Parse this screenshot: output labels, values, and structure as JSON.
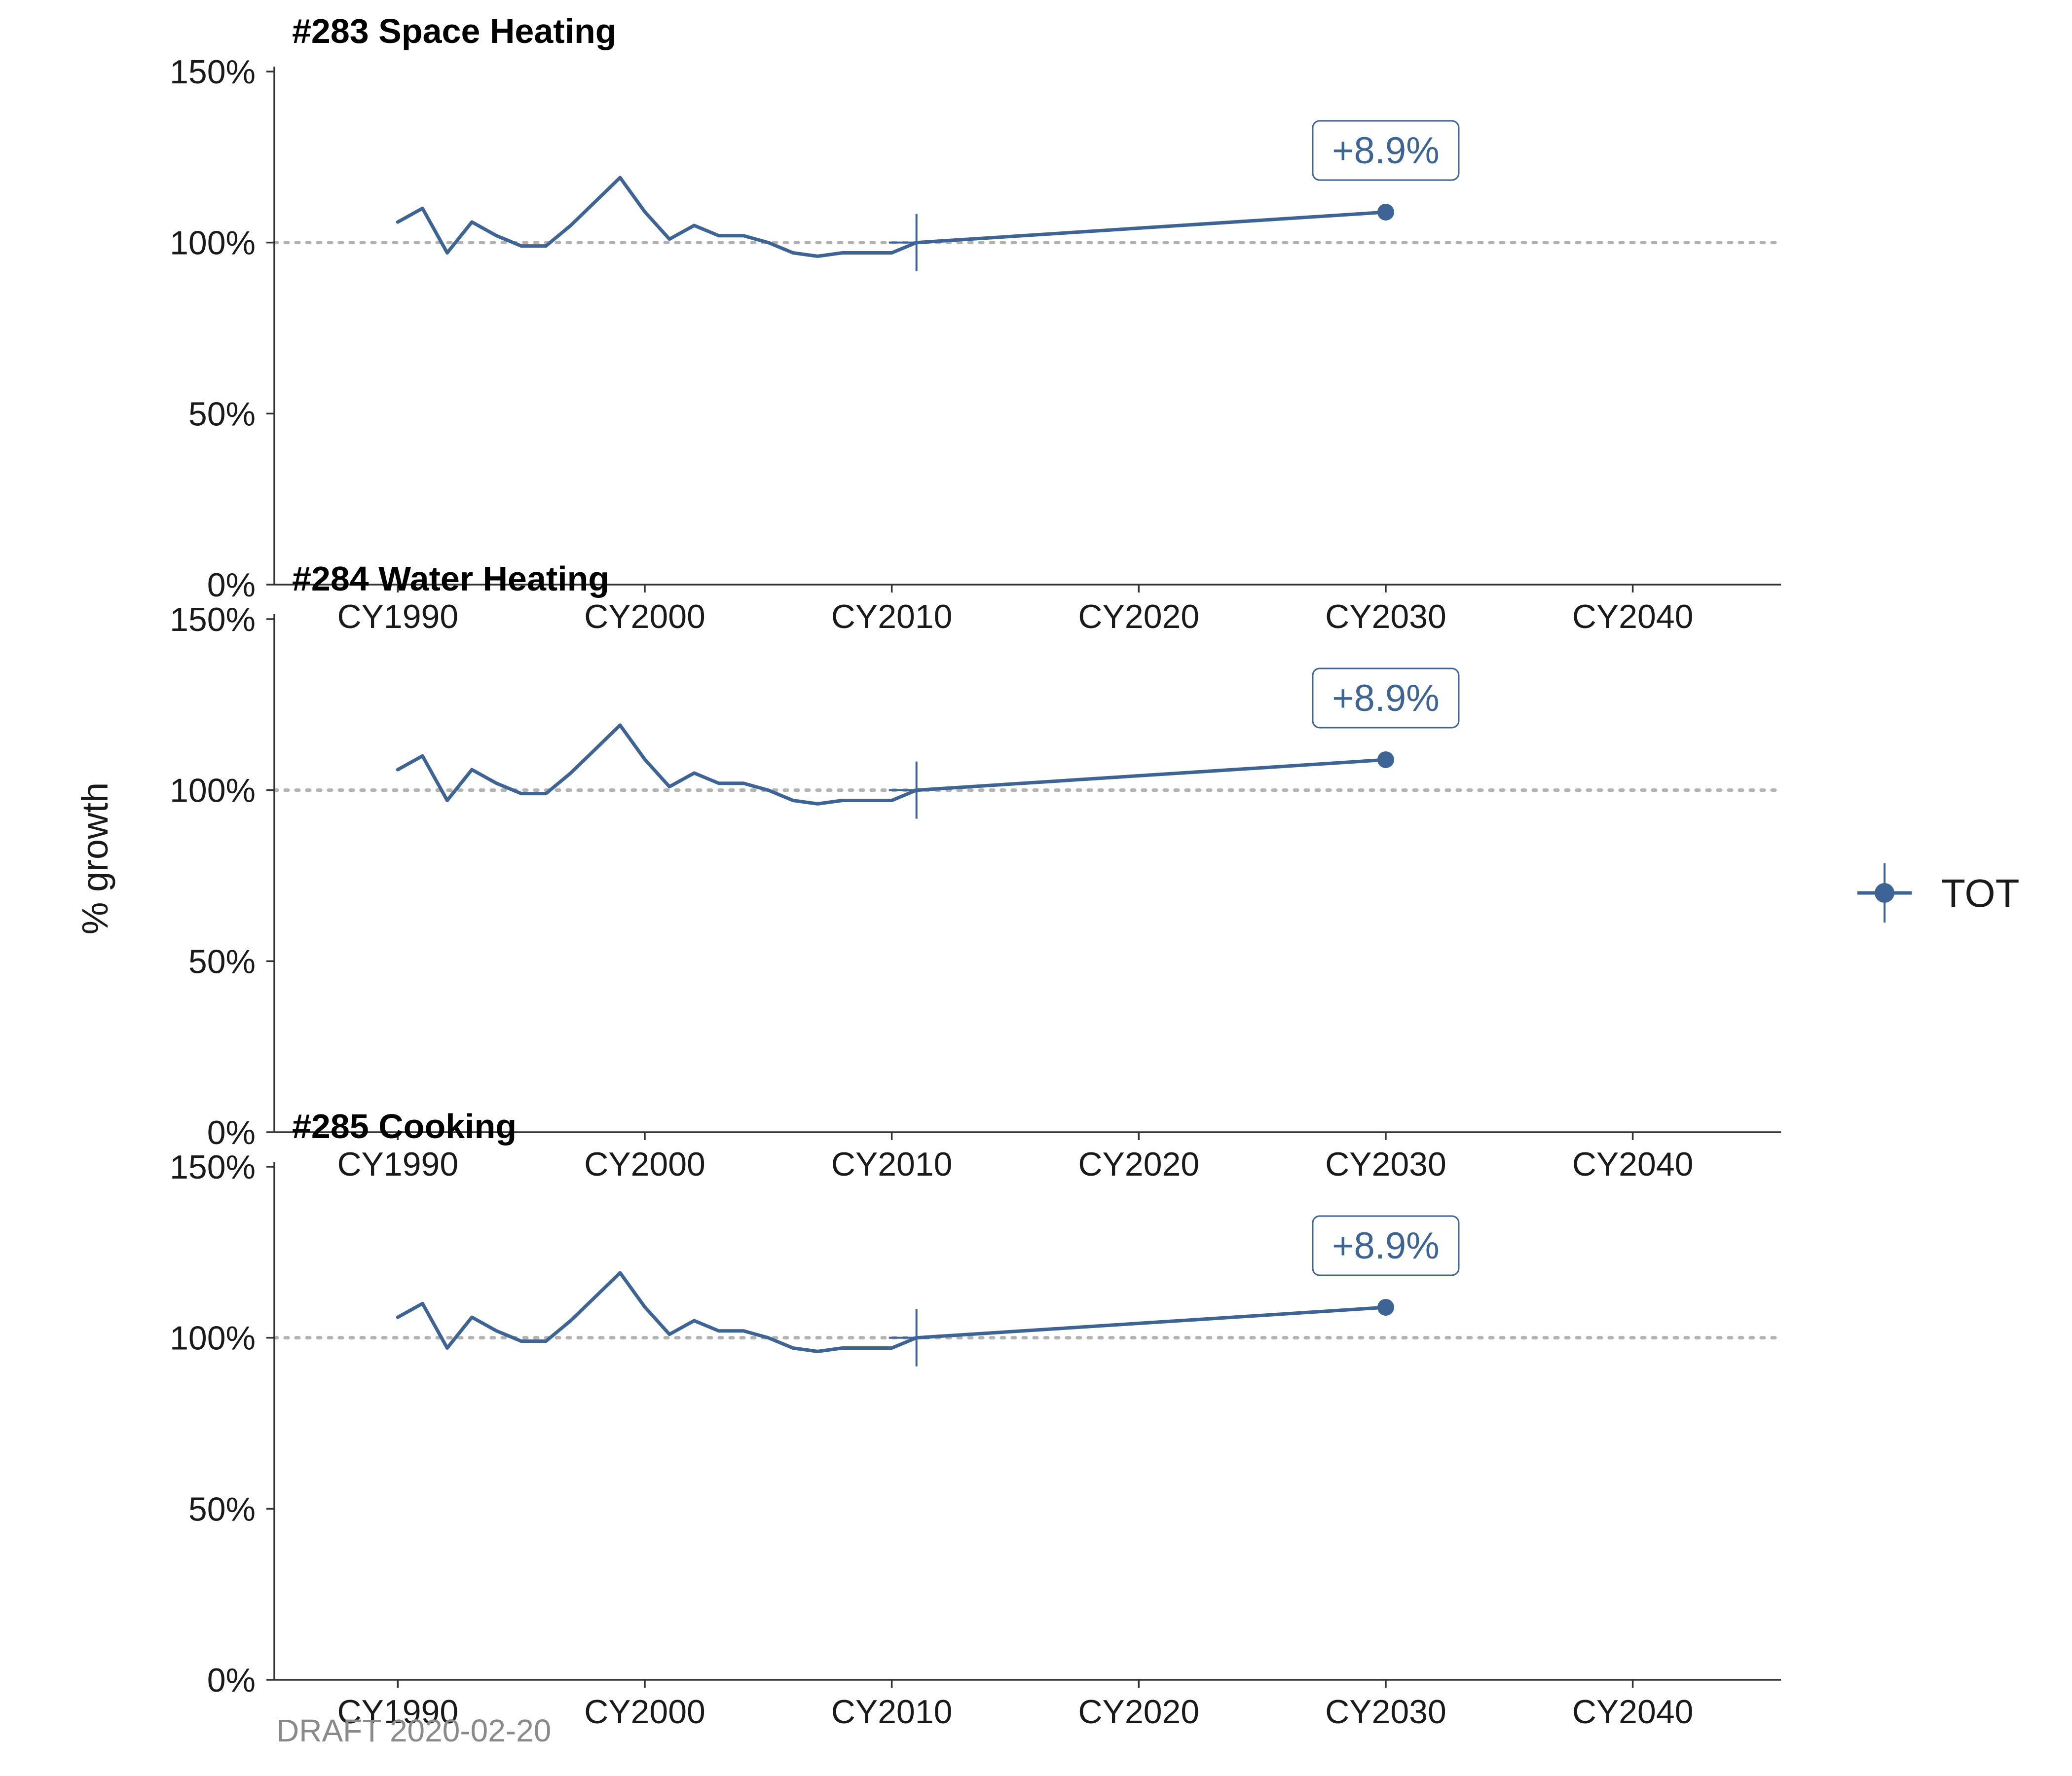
{
  "chart_data": {
    "type": "line",
    "ylabel": "% growth",
    "caption": "DRAFT 2020-02-20",
    "colors": {
      "series": "#3e6496",
      "reference_line": "#b3b3b3",
      "axis": "#333333",
      "caption": "#8a8a8a"
    },
    "grid": false,
    "reference_line_value": 100,
    "legend": {
      "position": "right",
      "entries": [
        {
          "label": "TOT"
        }
      ]
    },
    "x_tick_values": [
      1990,
      2000,
      2010,
      2020,
      2030,
      2040
    ],
    "x_tick_labels": [
      "CY1990",
      "CY2000",
      "CY2010",
      "CY2020",
      "CY2030",
      "CY2040"
    ],
    "xlim": [
      1985,
      2046
    ],
    "y_tick_values": [
      0,
      50,
      100,
      150
    ],
    "y_tick_labels": [
      "0%",
      "50%",
      "100%",
      "150%"
    ],
    "ylim": [
      0,
      150
    ],
    "panels": [
      {
        "title": "#283 Space Heating",
        "series": [
          {
            "name": "TOT",
            "x": [
              1990,
              1991,
              1992,
              1993,
              1994,
              1995,
              1996,
              1997,
              1998,
              1999,
              2000,
              2001,
              2002,
              2003,
              2004,
              2005,
              2006,
              2007,
              2008,
              2009,
              2010,
              2011,
              2030
            ],
            "y": [
              106,
              110,
              97,
              106,
              102,
              99,
              99,
              105,
              112,
              119,
              109,
              101,
              105,
              102,
              102,
              100,
              97,
              96,
              97,
              97,
              97,
              100,
              108.9
            ]
          }
        ],
        "base_year": 2011,
        "target": {
          "x": 2030,
          "y": 108.9,
          "label": "+8.9%"
        }
      },
      {
        "title": "#284 Water Heating",
        "series": [
          {
            "name": "TOT",
            "x": [
              1990,
              1991,
              1992,
              1993,
              1994,
              1995,
              1996,
              1997,
              1998,
              1999,
              2000,
              2001,
              2002,
              2003,
              2004,
              2005,
              2006,
              2007,
              2008,
              2009,
              2010,
              2011,
              2030
            ],
            "y": [
              106,
              110,
              97,
              106,
              102,
              99,
              99,
              105,
              112,
              119,
              109,
              101,
              105,
              102,
              102,
              100,
              97,
              96,
              97,
              97,
              97,
              100,
              108.9
            ]
          }
        ],
        "base_year": 2011,
        "target": {
          "x": 2030,
          "y": 108.9,
          "label": "+8.9%"
        }
      },
      {
        "title": "#285 Cooking",
        "series": [
          {
            "name": "TOT",
            "x": [
              1990,
              1991,
              1992,
              1993,
              1994,
              1995,
              1996,
              1997,
              1998,
              1999,
              2000,
              2001,
              2002,
              2003,
              2004,
              2005,
              2006,
              2007,
              2008,
              2009,
              2010,
              2011,
              2030
            ],
            "y": [
              106,
              110,
              97,
              106,
              102,
              99,
              99,
              105,
              112,
              119,
              109,
              101,
              105,
              102,
              102,
              100,
              97,
              96,
              97,
              97,
              97,
              100,
              108.9
            ]
          }
        ],
        "base_year": 2011,
        "target": {
          "x": 2030,
          "y": 108.9,
          "label": "+8.9%"
        }
      }
    ]
  }
}
